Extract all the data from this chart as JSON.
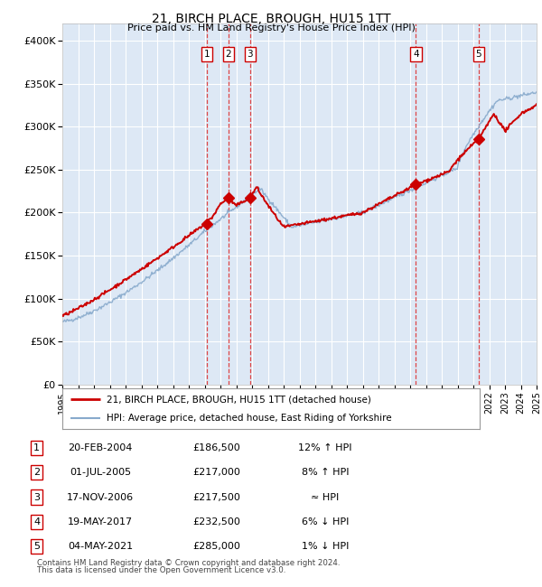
{
  "title": "21, BIRCH PLACE, BROUGH, HU15 1TT",
  "subtitle": "Price paid vs. HM Land Registry's House Price Index (HPI)",
  "legend_line1": "21, BIRCH PLACE, BROUGH, HU15 1TT (detached house)",
  "legend_line2": "HPI: Average price, detached house, East Riding of Yorkshire",
  "footer1": "Contains HM Land Registry data © Crown copyright and database right 2024.",
  "footer2": "This data is licensed under the Open Government Licence v3.0.",
  "x_start_year": 1995,
  "x_end_year": 2025,
  "ylim": [
    0,
    420000
  ],
  "yticks": [
    0,
    50000,
    100000,
    150000,
    200000,
    250000,
    300000,
    350000,
    400000
  ],
  "ytick_labels": [
    "£0",
    "£50K",
    "£100K",
    "£150K",
    "£200K",
    "£250K",
    "£300K",
    "£350K",
    "£400K"
  ],
  "background_color": "#dde8f5",
  "grid_color": "#ffffff",
  "red_line_color": "#cc0000",
  "blue_line_color": "#88aacc",
  "marker_color": "#cc0000",
  "dashed_vline_color": "#dd3333",
  "transactions": [
    {
      "num": 1,
      "date_num": 2004.13,
      "price": 186500,
      "label": "1"
    },
    {
      "num": 2,
      "date_num": 2005.5,
      "price": 217000,
      "label": "2"
    },
    {
      "num": 3,
      "date_num": 2006.88,
      "price": 217500,
      "label": "3"
    },
    {
      "num": 4,
      "date_num": 2017.37,
      "price": 232500,
      "label": "4"
    },
    {
      "num": 5,
      "date_num": 2021.33,
      "price": 285000,
      "label": "5"
    }
  ],
  "table_rows": [
    {
      "num": "1",
      "date": "20-FEB-2004",
      "price": "£186,500",
      "hpi": "12% ↑ HPI"
    },
    {
      "num": "2",
      "date": "01-JUL-2005",
      "price": "£217,000",
      "hpi": "8% ↑ HPI"
    },
    {
      "num": "3",
      "date": "17-NOV-2006",
      "price": "£217,500",
      "hpi": "≈ HPI"
    },
    {
      "num": "4",
      "date": "19-MAY-2017",
      "price": "£232,500",
      "hpi": "6% ↓ HPI"
    },
    {
      "num": "5",
      "date": "04-MAY-2021",
      "price": "£285,000",
      "hpi": "1% ↓ HPI"
    }
  ]
}
